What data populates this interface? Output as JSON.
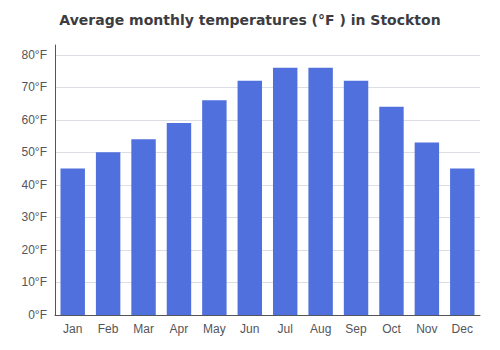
{
  "chart_data": {
    "type": "bar",
    "title": "Average monthly temperatures (°F ) in Stockton",
    "categories": [
      "Jan",
      "Feb",
      "Mar",
      "Apr",
      "May",
      "Jun",
      "Jul",
      "Aug",
      "Sep",
      "Oct",
      "Nov",
      "Dec"
    ],
    "values": [
      45,
      50,
      54,
      59,
      66,
      72,
      76,
      76,
      72,
      64,
      53,
      45
    ],
    "ylim": [
      0,
      83
    ],
    "yticks": [
      {
        "value": 0,
        "label": "0°F"
      },
      {
        "value": 10,
        "label": "10°F"
      },
      {
        "value": 20,
        "label": "20°F"
      },
      {
        "value": 30,
        "label": "30°F"
      },
      {
        "value": 40,
        "label": "40°F"
      },
      {
        "value": 50,
        "label": "50°F"
      },
      {
        "value": 60,
        "label": "60°F"
      },
      {
        "value": 70,
        "label": "70°F"
      },
      {
        "value": 80,
        "label": "80°F"
      }
    ],
    "grid": true
  }
}
